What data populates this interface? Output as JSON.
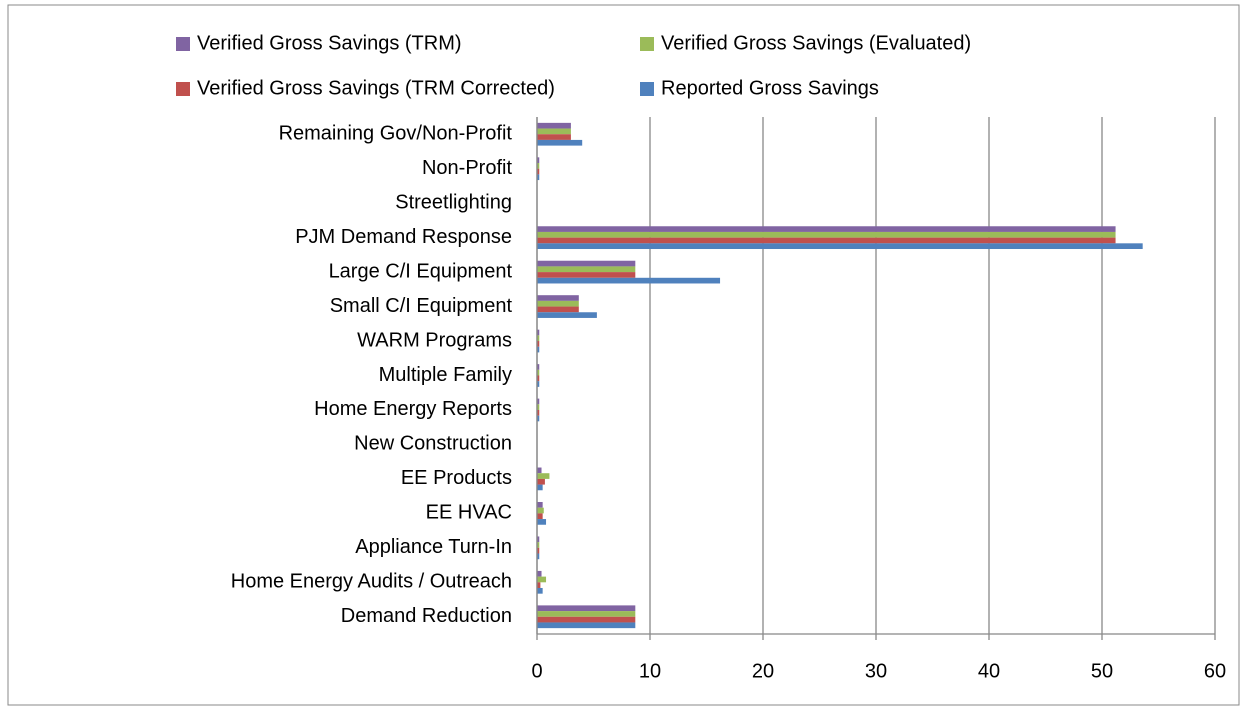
{
  "chart_data": {
    "type": "bar",
    "orientation": "horizontal",
    "categories": [
      "Remaining Gov/Non-Profit",
      "Non-Profit",
      "Streetlighting",
      "PJM Demand Response",
      "Large  C/I Equipment",
      "Small C/I Equipment",
      "WARM Programs",
      "Multiple Family",
      "Home Energy Reports",
      "New Construction",
      "EE Products",
      "EE HVAC",
      "Appliance Turn-In",
      "Home Energy Audits / Outreach",
      "Demand Reduction"
    ],
    "series": [
      {
        "name": "Verified Gross Savings (TRM)",
        "color": "#8064a2",
        "values": [
          3.0,
          0.2,
          0,
          51.2,
          8.7,
          3.7,
          0.2,
          0.2,
          0.2,
          0,
          0.4,
          0.5,
          0.2,
          0.4,
          8.7
        ]
      },
      {
        "name": "Verified Gross Savings (Evaluated)",
        "color": "#9bbb59",
        "values": [
          3.0,
          0.2,
          0,
          51.2,
          8.7,
          3.7,
          0.2,
          0.2,
          0.2,
          0,
          1.1,
          0.6,
          0.2,
          0.8,
          8.7
        ]
      },
      {
        "name": "Verified Gross Savings (TRM Corrected)",
        "color": "#c0504d",
        "values": [
          3.0,
          0.2,
          0,
          51.2,
          8.7,
          3.7,
          0.2,
          0.2,
          0.2,
          0,
          0.7,
          0.5,
          0.2,
          0.3,
          8.7
        ]
      },
      {
        "name": "Reported Gross Savings",
        "color": "#4f81bd",
        "values": [
          4.0,
          0.2,
          0,
          53.6,
          16.2,
          5.3,
          0.2,
          0.2,
          0.2,
          0,
          0.5,
          0.8,
          0.2,
          0.5,
          8.7
        ]
      }
    ],
    "xlim": [
      0,
      60
    ],
    "xticks": [
      0,
      10,
      20,
      30,
      40,
      50,
      60
    ],
    "grid": true
  }
}
